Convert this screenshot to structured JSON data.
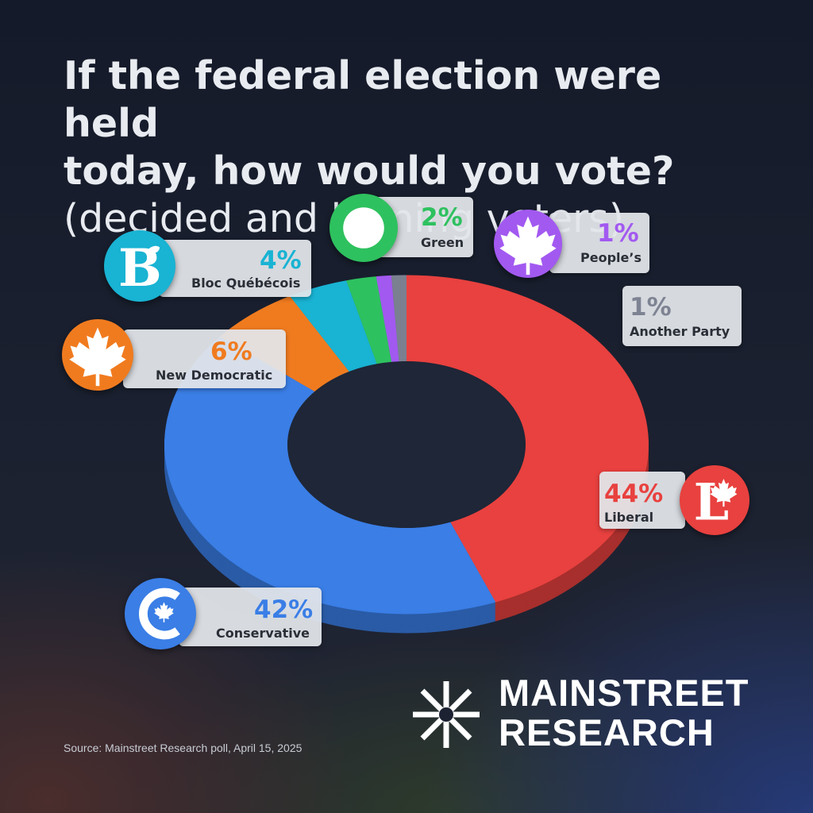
{
  "title": {
    "line1": "If the federal election were held",
    "line2": "today, how would you vote?",
    "line3": "(decided and leaning voters)"
  },
  "chart_data": {
    "type": "pie",
    "categories": [
      "Liberal",
      "Conservative",
      "New Democratic",
      "Bloc Québécois",
      "Green",
      "People’s",
      "Another Party"
    ],
    "values": [
      44,
      42,
      6,
      4,
      2,
      1,
      1
    ],
    "value_labels": [
      "44%",
      "42%",
      "6%",
      "4%",
      "2%",
      "1%",
      "1%"
    ],
    "colors": [
      "#e8413f",
      "#3a7ee6",
      "#f07b1f",
      "#19b3d3",
      "#2ec15f",
      "#a259f0",
      "#7a8090"
    ],
    "donut": true
  },
  "source": "Source: Mainstreet Research poll, April 15, 2025",
  "brand": {
    "line1": "MAINSTREET",
    "line2": "RESEARCH"
  },
  "icons": {
    "liberal": "liberal-l-maple-icon",
    "conservative": "conservative-c-maple-icon",
    "ndp": "maple-leaf-icon",
    "bloc": "bloc-b-icon",
    "green": "green-circle-icon",
    "peoples": "maple-leaf-icon",
    "brand": "mainstreet-star-logo-icon"
  }
}
